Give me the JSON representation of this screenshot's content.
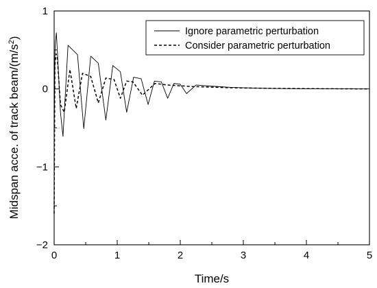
{
  "chart_data": {
    "type": "line",
    "title": "",
    "xlabel": "Time/s",
    "ylabel_main": "Midspan acce. of track beam/(m/s",
    "ylabel_sup": "2",
    "ylabel_end": ")",
    "xlim": [
      0,
      5
    ],
    "ylim": [
      -2,
      1
    ],
    "x_ticks": [
      0,
      1,
      2,
      3,
      4,
      5
    ],
    "x_tick_labels": [
      "0",
      "1",
      "2",
      "3",
      "4",
      "5"
    ],
    "y_ticks": [
      -2,
      -1,
      0,
      1
    ],
    "y_tick_labels": [
      "−2",
      "−1",
      "0",
      "1"
    ],
    "grid": false,
    "legend_position": "top-right",
    "series": [
      {
        "name": "Ignore parametric perturbation",
        "style": "solid",
        "color": "#000000",
        "x": [
          0.0,
          0.012,
          0.02,
          0.035,
          0.05,
          0.1,
          0.14,
          0.22,
          0.37,
          0.47,
          0.58,
          0.7,
          0.82,
          0.93,
          1.05,
          1.15,
          1.26,
          1.38,
          1.49,
          1.59,
          1.7,
          1.8,
          1.9,
          2.0,
          2.1,
          2.25,
          2.4,
          2.6,
          2.8,
          3.0,
          3.2,
          3.5,
          4.0,
          4.5,
          5.0
        ],
        "y": [
          -0.65,
          0.45,
          0.6,
          0.72,
          0.5,
          -0.3,
          -0.61,
          0.56,
          0.44,
          -0.51,
          0.42,
          0.33,
          -0.4,
          0.3,
          0.22,
          -0.3,
          0.15,
          0.13,
          -0.2,
          0.1,
          0.09,
          -0.12,
          0.07,
          0.06,
          -0.06,
          0.05,
          0.04,
          0.03,
          0.02,
          0.015,
          0.01,
          0.005,
          0.002,
          0.001,
          0.0
        ]
      },
      {
        "name": "Consider parametric perturbation",
        "style": "dashed",
        "color": "#000000",
        "x": [
          0.0,
          0.012,
          0.03,
          0.05,
          0.1,
          0.16,
          0.25,
          0.35,
          0.45,
          0.58,
          0.7,
          0.82,
          0.95,
          1.05,
          1.15,
          1.25,
          1.4,
          1.6,
          1.8,
          2.0,
          2.2,
          2.4,
          2.6,
          2.8,
          3.0,
          3.2,
          3.5,
          4.0,
          4.5,
          5.0
        ],
        "y": [
          -1.6,
          0.3,
          0.45,
          0.4,
          -0.2,
          -0.3,
          0.25,
          -0.25,
          0.2,
          0.16,
          -0.18,
          0.14,
          0.12,
          -0.12,
          0.1,
          0.09,
          -0.08,
          0.07,
          0.05,
          0.04,
          0.03,
          0.025,
          0.02,
          0.015,
          0.012,
          0.01,
          0.007,
          0.004,
          0.002,
          0.0
        ]
      }
    ]
  }
}
